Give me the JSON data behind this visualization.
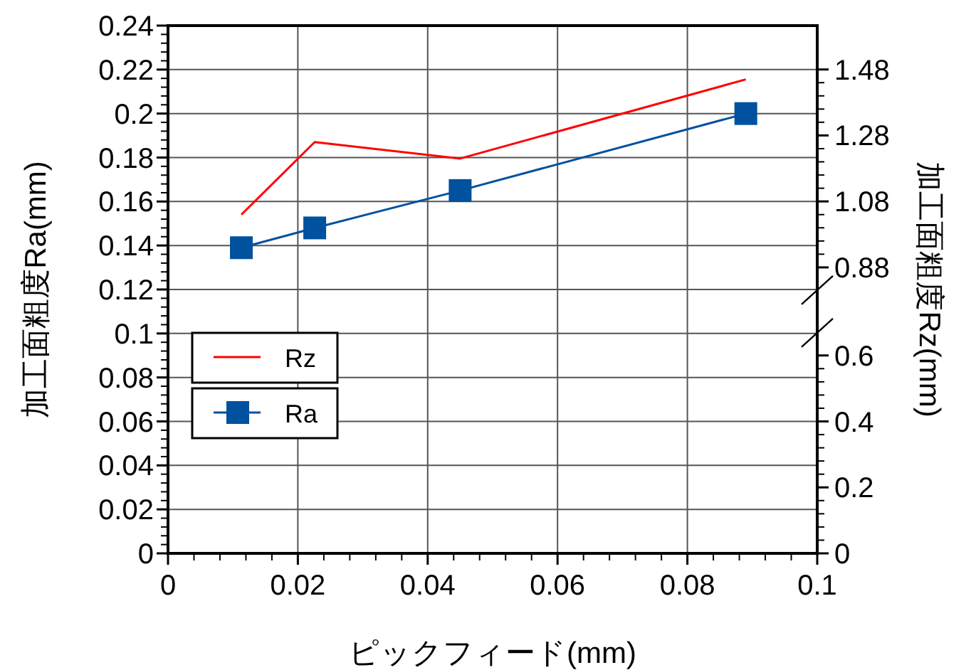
{
  "chart_data": {
    "type": "line",
    "xlabel": "ピックフィード(mm)",
    "ylabel": "加工面粗度Ra(mm)",
    "y2label": "加工面粗度Rz(mm)",
    "series": [
      {
        "name": "Rz",
        "color": "#ff0000",
        "axis": "y2",
        "marker": "none",
        "x": [
          0.0113,
          0.0226,
          0.045,
          0.089
        ],
        "values": [
          1.04,
          1.26,
          1.21,
          1.45
        ]
      },
      {
        "name": "Ra",
        "color": "#00519e",
        "marker": "square",
        "x": [
          0.0113,
          0.0226,
          0.045,
          0.089
        ],
        "values": [
          0.139,
          0.148,
          0.165,
          0.2
        ]
      }
    ],
    "xlim": [
      0,
      0.1
    ],
    "xticks": [
      0,
      0.02,
      0.04,
      0.06,
      0.08,
      0.1
    ],
    "ylim": [
      0,
      0.24
    ],
    "yticks": [
      0,
      0.02,
      0.04,
      0.06,
      0.08,
      0.1,
      0.12,
      0.14,
      0.16,
      0.18,
      0.2,
      0.22,
      0.24
    ],
    "y2lim": [
      0.013,
      1.613
    ],
    "y2ticks": [
      0.88,
      1.08,
      1.28,
      1.48
    ],
    "y3lim": [
      0,
      1.6
    ],
    "y3ticks": [
      0,
      0.2,
      0.4,
      0.6
    ],
    "grid": true,
    "legend": "left",
    "line_style": "solid"
  }
}
